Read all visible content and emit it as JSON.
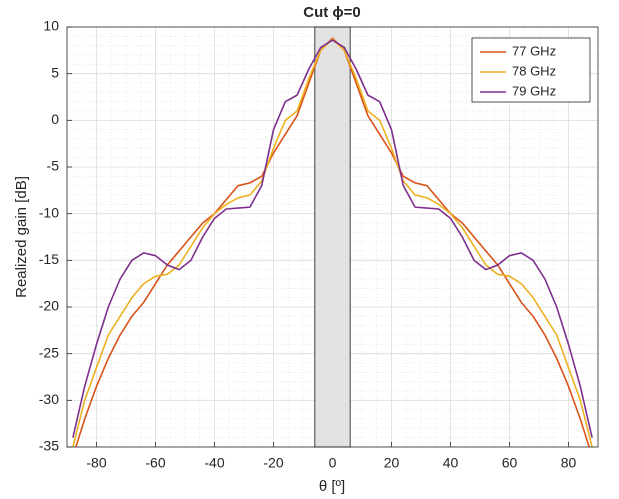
{
  "chart_data": {
    "type": "line",
    "title": "Cut ϕ=0",
    "xlabel": "θ [º]",
    "ylabel": "Realized gain [dB]",
    "x": [
      -88,
      -84,
      -80,
      -76,
      -72,
      -68,
      -64,
      -60,
      -56,
      -52,
      -48,
      -44,
      -40,
      -36,
      -32,
      -28,
      -24,
      -20,
      -16,
      -12,
      -8,
      -4,
      0,
      4,
      8,
      12,
      16,
      20,
      24,
      28,
      32,
      36,
      40,
      44,
      48,
      52,
      56,
      60,
      64,
      68,
      72,
      76,
      80,
      84,
      88
    ],
    "series": [
      {
        "name": "77 GHz",
        "color": "#d95319",
        "values": [
          -36,
          -32,
          -28.5,
          -25.5,
          -23,
          -21,
          -19.5,
          -17.5,
          -15.5,
          -14,
          -12.5,
          -11,
          -10,
          -8.5,
          -7,
          -6.7,
          -6,
          -3.5,
          -1.5,
          0.5,
          4,
          7.5,
          8.8,
          7.5,
          4,
          0.5,
          -1.5,
          -3.5,
          -6,
          -6.7,
          -7,
          -8.5,
          -10,
          -11,
          -12.5,
          -14,
          -15.5,
          -17.5,
          -19.5,
          -21,
          -23,
          -25.5,
          -28.5,
          -32,
          -36
        ]
      },
      {
        "name": "78 GHz",
        "color": "#edb120",
        "values": [
          -35,
          -30,
          -26.5,
          -23,
          -21,
          -19,
          -17.5,
          -16.7,
          -16.5,
          -15.5,
          -13.5,
          -11.5,
          -10,
          -9,
          -8.3,
          -8,
          -6.5,
          -3,
          0,
          1,
          4.5,
          7.5,
          8.7,
          7.5,
          4.5,
          1,
          0,
          -3,
          -6.5,
          -8,
          -8.3,
          -9,
          -10,
          -11.5,
          -13.5,
          -15.5,
          -16.5,
          -16.7,
          -17.5,
          -19,
          -21,
          -23,
          -26.5,
          -30,
          -35
        ]
      },
      {
        "name": "79 GHz",
        "color": "#7e2f8e",
        "values": [
          -34,
          -28.5,
          -24,
          -20,
          -17,
          -15,
          -14.2,
          -14.5,
          -15.5,
          -16,
          -15,
          -12.5,
          -10.5,
          -9.5,
          -9.4,
          -9.3,
          -7,
          -1,
          2,
          2.7,
          5.5,
          7.8,
          8.6,
          7.8,
          5.5,
          2.7,
          2,
          -1,
          -7,
          -9.3,
          -9.4,
          -9.5,
          -10.5,
          -12.5,
          -15,
          -16,
          -15.5,
          -14.5,
          -14.2,
          -15,
          -17,
          -20,
          -24,
          -28.5,
          -34
        ]
      }
    ],
    "shaded_region": [
      -6,
      6
    ],
    "xlim": [
      -90,
      90
    ],
    "ylim": [
      -35,
      10
    ],
    "xticks": [
      -80,
      -60,
      -40,
      -20,
      0,
      20,
      40,
      60,
      80
    ],
    "yticks": [
      -35,
      -30,
      -25,
      -20,
      -15,
      -10,
      -5,
      0,
      5,
      10
    ],
    "grid": true,
    "legend": "upper right"
  }
}
